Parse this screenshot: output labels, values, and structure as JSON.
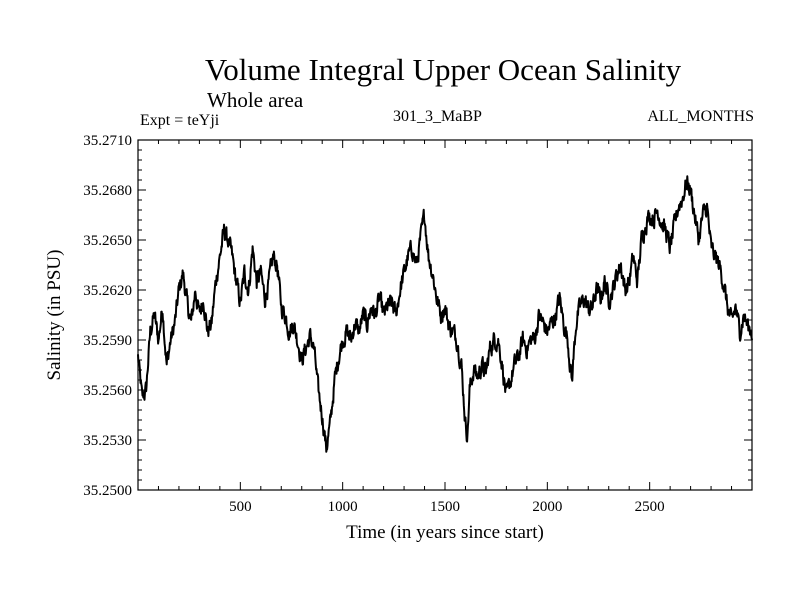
{
  "chart_data": {
    "type": "line",
    "title": "Volume Integral Upper Ocean Salinity",
    "subtitle": "Whole area",
    "annotations": {
      "experiment": "Expt = teYji",
      "run_id": "301_3_MaBP",
      "months": "ALL_MONTHS"
    },
    "xlabel": "Time (in years since start)",
    "ylabel": "Salinity (in PSU)",
    "xlim": [
      0,
      3000
    ],
    "ylim": [
      35.25,
      35.271
    ],
    "x_ticks": [
      500,
      1000,
      1500,
      2000,
      2500
    ],
    "y_ticks": [
      35.25,
      35.253,
      35.256,
      35.259,
      35.262,
      35.265,
      35.268,
      35.271
    ],
    "y_tick_labels": [
      "35.2500",
      "35.2530",
      "35.2560",
      "35.2590",
      "35.2620",
      "35.2650",
      "35.2680",
      "35.2710"
    ],
    "series": [
      {
        "name": "Salinity",
        "color": "#000000",
        "points": [
          [
            0,
            35.258
          ],
          [
            20,
            35.2555
          ],
          [
            40,
            35.256
          ],
          [
            60,
            35.2595
          ],
          [
            80,
            35.2605
          ],
          [
            100,
            35.259
          ],
          [
            120,
            35.261
          ],
          [
            140,
            35.2575
          ],
          [
            160,
            35.259
          ],
          [
            180,
            35.26
          ],
          [
            200,
            35.262
          ],
          [
            220,
            35.263
          ],
          [
            240,
            35.2612
          ],
          [
            260,
            35.26
          ],
          [
            280,
            35.262
          ],
          [
            300,
            35.2605
          ],
          [
            320,
            35.2615
          ],
          [
            340,
            35.2595
          ],
          [
            360,
            35.26
          ],
          [
            380,
            35.2625
          ],
          [
            400,
            35.264
          ],
          [
            420,
            35.2655
          ],
          [
            440,
            35.265
          ],
          [
            460,
            35.264
          ],
          [
            480,
            35.2625
          ],
          [
            500,
            35.2612
          ],
          [
            520,
            35.263
          ],
          [
            540,
            35.262
          ],
          [
            560,
            35.2645
          ],
          [
            580,
            35.2625
          ],
          [
            600,
            35.263
          ],
          [
            620,
            35.2615
          ],
          [
            640,
            35.2625
          ],
          [
            660,
            35.264
          ],
          [
            680,
            35.2635
          ],
          [
            700,
            35.261
          ],
          [
            720,
            35.2605
          ],
          [
            740,
            35.2595
          ],
          [
            760,
            35.26
          ],
          [
            780,
            35.259
          ],
          [
            800,
            35.2578
          ],
          [
            820,
            35.2585
          ],
          [
            840,
            35.2592
          ],
          [
            860,
            35.2585
          ],
          [
            880,
            35.256
          ],
          [
            900,
            35.2545
          ],
          [
            920,
            35.2525
          ],
          [
            940,
            35.254
          ],
          [
            960,
            35.2565
          ],
          [
            980,
            35.258
          ],
          [
            1000,
            35.259
          ],
          [
            1020,
            35.2595
          ],
          [
            1040,
            35.259
          ],
          [
            1060,
            35.26
          ],
          [
            1080,
            35.2595
          ],
          [
            1100,
            35.2605
          ],
          [
            1120,
            35.26
          ],
          [
            1140,
            35.261
          ],
          [
            1160,
            35.2605
          ],
          [
            1180,
            35.2615
          ],
          [
            1200,
            35.2605
          ],
          [
            1220,
            35.261
          ],
          [
            1240,
            35.2612
          ],
          [
            1260,
            35.2605
          ],
          [
            1280,
            35.262
          ],
          [
            1300,
            35.263
          ],
          [
            1320,
            35.264
          ],
          [
            1340,
            35.2645
          ],
          [
            1360,
            35.2635
          ],
          [
            1380,
            35.265
          ],
          [
            1400,
            35.2665
          ],
          [
            1420,
            35.264
          ],
          [
            1440,
            35.263
          ],
          [
            1460,
            35.2615
          ],
          [
            1480,
            35.2605
          ],
          [
            1500,
            35.261
          ],
          [
            1520,
            35.2598
          ],
          [
            1540,
            35.2595
          ],
          [
            1560,
            35.259
          ],
          [
            1580,
            35.2575
          ],
          [
            1600,
            35.254
          ],
          [
            1610,
            35.2533
          ],
          [
            1620,
            35.256
          ],
          [
            1640,
            35.2572
          ],
          [
            1660,
            35.2568
          ],
          [
            1680,
            35.2575
          ],
          [
            1700,
            35.257
          ],
          [
            1720,
            35.2585
          ],
          [
            1740,
            35.259
          ],
          [
            1760,
            35.259
          ],
          [
            1780,
            35.2575
          ],
          [
            1800,
            35.2555
          ],
          [
            1820,
            35.2565
          ],
          [
            1840,
            35.2575
          ],
          [
            1860,
            35.258
          ],
          [
            1880,
            35.259
          ],
          [
            1900,
            35.2585
          ],
          [
            1920,
            35.259
          ],
          [
            1940,
            35.2592
          ],
          [
            1960,
            35.2605
          ],
          [
            1980,
            35.26
          ],
          [
            2000,
            35.2595
          ],
          [
            2020,
            35.26
          ],
          [
            2040,
            35.2605
          ],
          [
            2060,
            35.2615
          ],
          [
            2080,
            35.26
          ],
          [
            2100,
            35.259
          ],
          [
            2120,
            35.2565
          ],
          [
            2140,
            35.26
          ],
          [
            2160,
            35.261
          ],
          [
            2180,
            35.2615
          ],
          [
            2200,
            35.2608
          ],
          [
            2220,
            35.261
          ],
          [
            2240,
            35.262
          ],
          [
            2260,
            35.2615
          ],
          [
            2280,
            35.2625
          ],
          [
            2300,
            35.2615
          ],
          [
            2320,
            35.262
          ],
          [
            2340,
            35.263
          ],
          [
            2360,
            35.2635
          ],
          [
            2380,
            35.262
          ],
          [
            2400,
            35.2625
          ],
          [
            2420,
            35.264
          ],
          [
            2440,
            35.2625
          ],
          [
            2460,
            35.265
          ],
          [
            2480,
            35.266
          ],
          [
            2500,
            35.2665
          ],
          [
            2520,
            35.2663
          ],
          [
            2540,
            35.2668
          ],
          [
            2560,
            35.266
          ],
          [
            2580,
            35.2655
          ],
          [
            2600,
            35.2645
          ],
          [
            2620,
            35.2658
          ],
          [
            2640,
            35.267
          ],
          [
            2660,
            35.2675
          ],
          [
            2680,
            35.2685
          ],
          [
            2700,
            35.268
          ],
          [
            2720,
            35.2665
          ],
          [
            2740,
            35.265
          ],
          [
            2760,
            35.2665
          ],
          [
            2780,
            35.267
          ],
          [
            2800,
            35.2645
          ],
          [
            2820,
            35.264
          ],
          [
            2840,
            35.2635
          ],
          [
            2860,
            35.2625
          ],
          [
            2880,
            35.261
          ],
          [
            2900,
            35.26
          ],
          [
            2920,
            35.261
          ],
          [
            2940,
            35.2595
          ],
          [
            2960,
            35.2605
          ],
          [
            2980,
            35.2598
          ],
          [
            3000,
            35.2595
          ]
        ]
      }
    ]
  }
}
